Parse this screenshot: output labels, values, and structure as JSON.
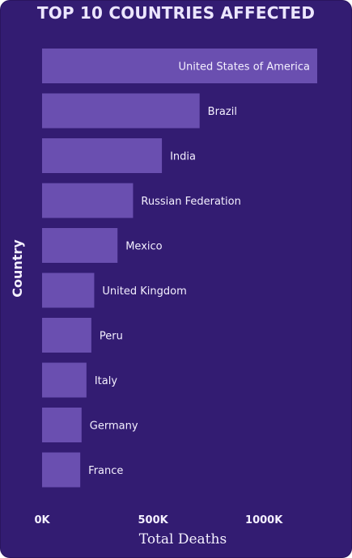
{
  "title": "TOP 10 COUNTRIES AFFECTED",
  "chart_data": {
    "type": "bar",
    "orientation": "horizontal",
    "title": "TOP 10 COUNTRIES AFFECTED",
    "xlabel": "Total Deaths",
    "ylabel": "Country",
    "categories": [
      "United States of America",
      "Brazil",
      "India",
      "Russian Federation",
      "Mexico",
      "United Kingdom",
      "Peru",
      "Italy",
      "Germany",
      "France"
    ],
    "values": [
      1240000,
      710000,
      540000,
      410000,
      340000,
      235000,
      222000,
      200000,
      178000,
      172000
    ],
    "xlim": [
      0,
      1240000
    ],
    "xticks": [
      {
        "value": 0,
        "label": "0K"
      },
      {
        "value": 500000,
        "label": "500K"
      },
      {
        "value": 1000000,
        "label": "1000K"
      }
    ],
    "grid": false,
    "legend": "none",
    "colors": {
      "background": "#331c72",
      "bar": "#6a4fb0",
      "text": "#f4f0ff"
    }
  }
}
